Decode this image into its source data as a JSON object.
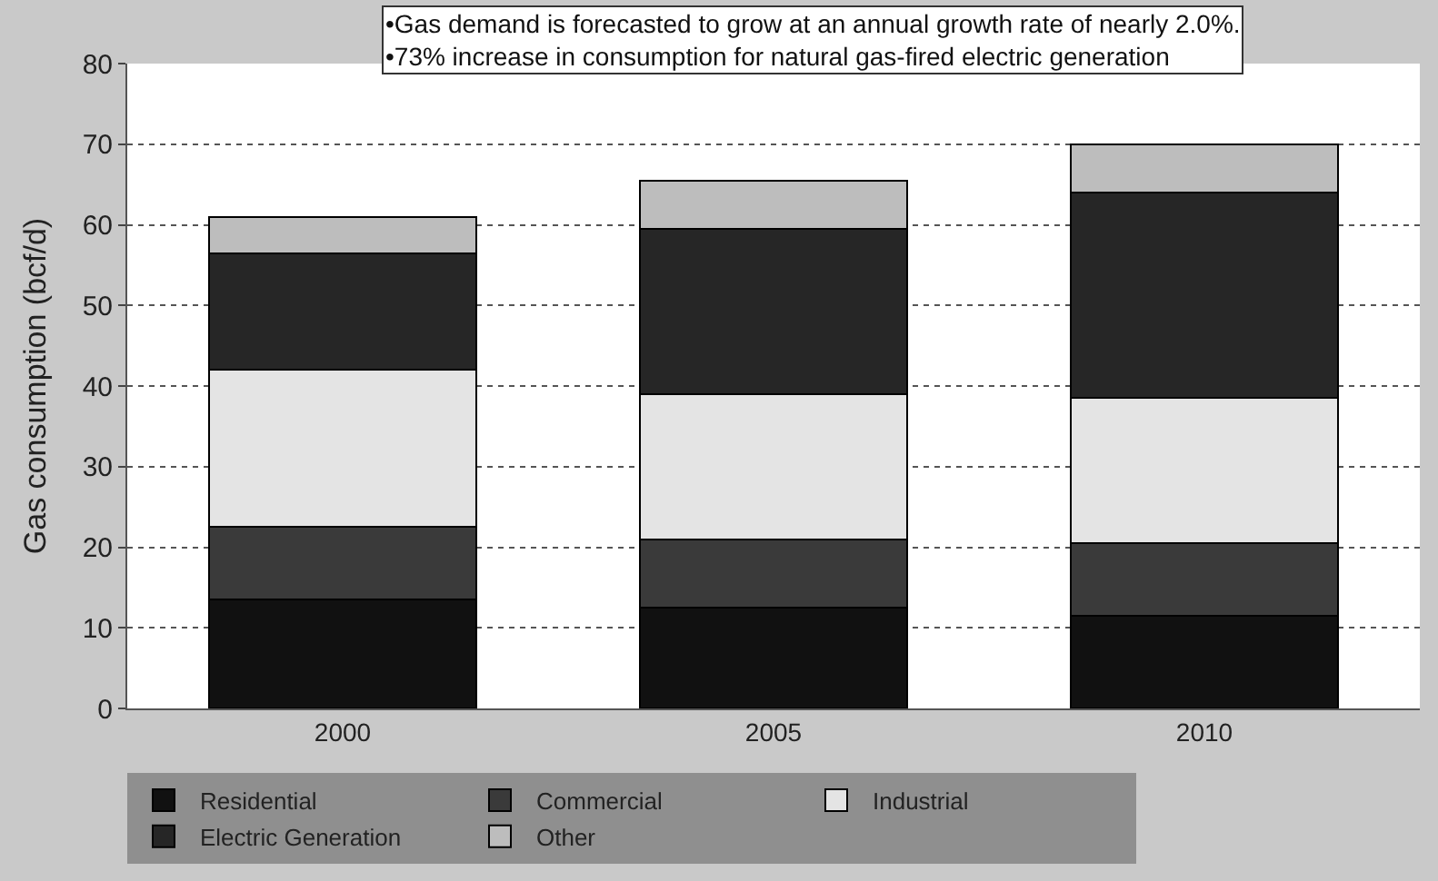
{
  "chart_data": {
    "type": "bar",
    "stacked": true,
    "ylabel": "Gas consumption (bcf/d)",
    "categories": [
      "2000",
      "2005",
      "2010"
    ],
    "series": [
      {
        "name": "Residential",
        "color": "#111111",
        "values": [
          13.5,
          12.5,
          11.5
        ]
      },
      {
        "name": "Commercial",
        "color": "#3a3a3a",
        "values": [
          9,
          8.5,
          9
        ]
      },
      {
        "name": "Industrial",
        "color": "#e4e4e4",
        "values": [
          19.5,
          18,
          18
        ]
      },
      {
        "name": "Electric Generation",
        "color": "#262626",
        "values": [
          14.5,
          20.5,
          25.5
        ]
      },
      {
        "name": "Other",
        "color": "#bdbdbd",
        "values": [
          4.5,
          6,
          6
        ]
      }
    ],
    "ylim": [
      0,
      80
    ],
    "yticks": [
      0,
      10,
      20,
      30,
      40,
      50,
      60,
      70,
      80
    ],
    "grid": "y",
    "legend": "bottom",
    "annotations": [
      "•Gas demand is forecasted to grow at an annual growth rate of nearly 2.0%.\n•73% increase in consumption for natural gas-fired electric generation"
    ]
  }
}
